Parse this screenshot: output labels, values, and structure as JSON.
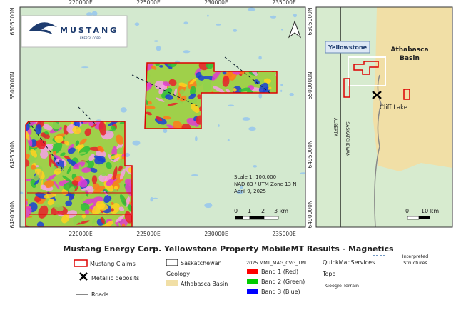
{
  "main_map": {
    "x_labels": [
      "220000E",
      "225000E",
      "230000E",
      "235000E"
    ],
    "y_labels": [
      "6505000N",
      "6500000N",
      "6495000N",
      "6490000N"
    ],
    "logo": {
      "name": "MUSTANG",
      "tagline": "ENERGY CORP"
    },
    "scale_info": {
      "scale": "Scale 1: 100,000",
      "datum": "NAD 83 / UTM Zone 13 N",
      "date": "April 9, 2025"
    },
    "scale_bar": [
      "0",
      "1",
      "2",
      "3 km"
    ]
  },
  "inset_map": {
    "y_labels": [
      "6505000N",
      "6500000N",
      "6495000N",
      "6490000N"
    ],
    "yellowstone": "Yellowstone",
    "basin_lines": [
      "Athabasca",
      "Basin"
    ],
    "cliff_lake": "Cliff Lake",
    "alberta": "ALBERTA",
    "saskatchewan": "SASKATCHEWAN",
    "scale_bar": [
      "0",
      "10 km"
    ]
  },
  "title": "Mustang Energy Corp. Yellowstone Property MobileMT Results - Magnetics",
  "legend": {
    "claims": "Mustang Claims",
    "deposits": "Metallic deposits",
    "roads": "Roads",
    "saskatchewan": "Saskatchewan",
    "geology": "Geology",
    "basin": "Athabasca Basin",
    "layer": "2025 MMT_MAG_CVG_TMI",
    "bands": [
      "Band 1 (Red)",
      "Band 2 (Green)",
      "Band 3 (Blue)"
    ],
    "services": "QuickMapServices",
    "topo": "Topo",
    "terrain": "Google Terrain",
    "structures_lines": [
      "Interpreted",
      "Structures"
    ]
  }
}
